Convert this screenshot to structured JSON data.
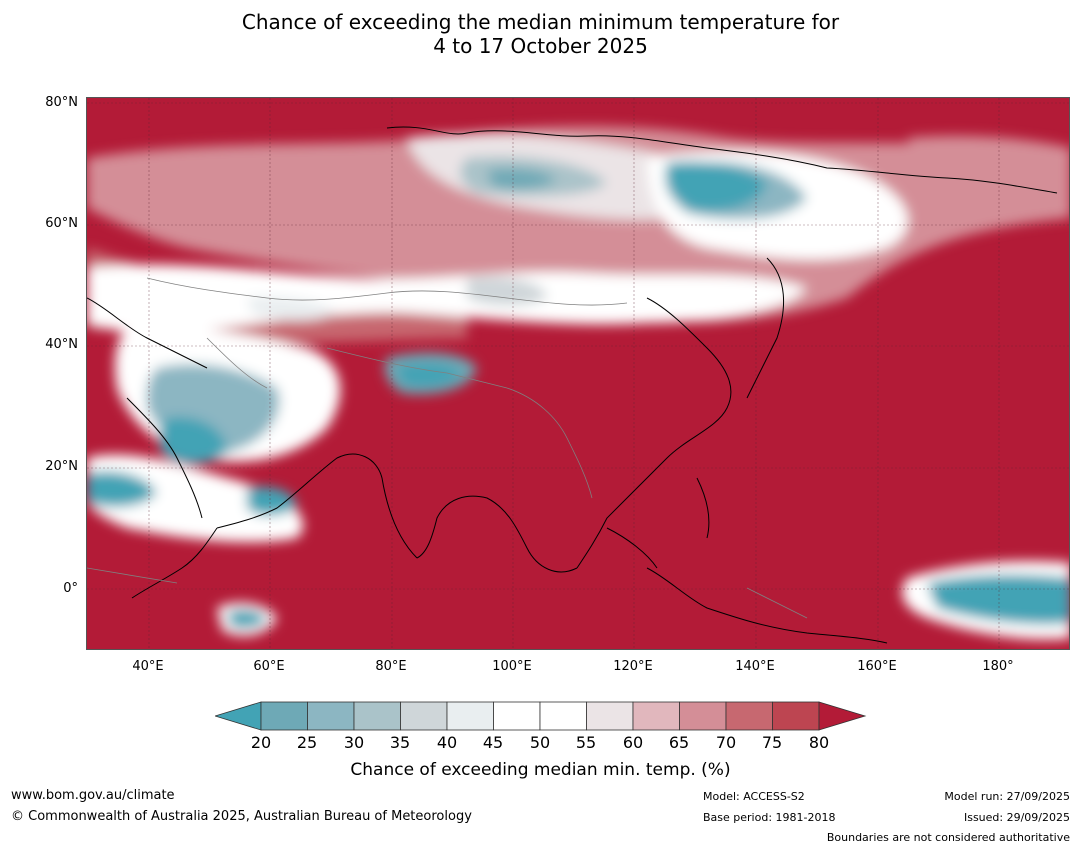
{
  "title": {
    "line1": "Chance of exceeding the median minimum temperature for",
    "line2": "4 to 17 October 2025"
  },
  "axes": {
    "lat_labels": [
      "80°N",
      "60°N",
      "40°N",
      "20°N",
      "0°"
    ],
    "lon_labels": [
      "40°E",
      "60°E",
      "80°E",
      "100°E",
      "120°E",
      "140°E",
      "160°E",
      "180°"
    ]
  },
  "colorbar": {
    "ticks": [
      "20",
      "25",
      "30",
      "35",
      "40",
      "45",
      "50",
      "55",
      "60",
      "65",
      "70",
      "75",
      "80"
    ],
    "colors": [
      "#42a3b5",
      "#6ea9b6",
      "#8cb6c2",
      "#aac3c9",
      "#cfd6d9",
      "#e9eef0",
      "#ffffff",
      "#ffffff",
      "#ebe4e6",
      "#e1b7bd",
      "#d48e97",
      "#c76870",
      "#bd4551",
      "#b31b37"
    ],
    "title": "Chance of exceeding median min. temp. (%)"
  },
  "footer": {
    "url": "www.bom.gov.au/climate",
    "copyright": "© Commonwealth of Australia 2025, Australian Bureau of Meteorology",
    "model": "Model: ACCESS-S2",
    "base_period": "Base period: 1981-2018",
    "model_run": "Model run: 27/09/2025",
    "issued": "Issued: 29/09/2025",
    "disclaimer": "Boundaries are not considered authoritative"
  }
}
